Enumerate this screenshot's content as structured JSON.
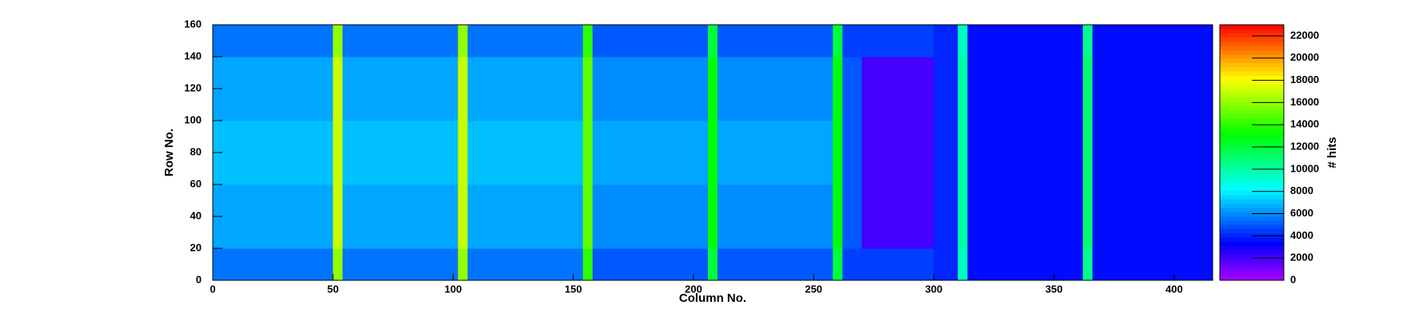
{
  "chart_data": {
    "type": "heatmap",
    "x_label": "Column No.",
    "y_label": "Row No.",
    "z_label": "# hits",
    "xbins": [
      0,
      50,
      54,
      102,
      106,
      154,
      158,
      206,
      210,
      258,
      262,
      270,
      300,
      310,
      314,
      362,
      366,
      416
    ],
    "ybins": [
      0,
      20,
      40,
      60,
      80,
      100,
      120,
      140,
      160
    ],
    "values": [
      [
        5500,
        16000,
        5500,
        16000,
        5500,
        14000,
        5000,
        12000,
        5000,
        12000,
        4500,
        4500,
        4000,
        9500,
        3500,
        10500,
        3500
      ],
      [
        6500,
        17000,
        6500,
        17000,
        6500,
        15000,
        6000,
        13000,
        6000,
        13000,
        5000,
        2000,
        4000,
        10000,
        3500,
        11000,
        3500
      ],
      [
        6500,
        17000,
        6500,
        17000,
        6500,
        15000,
        6000,
        13000,
        6000,
        13000,
        5000,
        2000,
        4000,
        10000,
        3500,
        11000,
        3500
      ],
      [
        7000,
        17000,
        7000,
        17000,
        7000,
        15000,
        6500,
        13000,
        6500,
        13000,
        5000,
        2000,
        4000,
        10000,
        3500,
        11000,
        3500
      ],
      [
        7000,
        17000,
        7000,
        17000,
        7000,
        15000,
        6500,
        13000,
        6500,
        13000,
        5000,
        2000,
        4000,
        10000,
        3500,
        11000,
        3500
      ],
      [
        6500,
        17000,
        6500,
        17000,
        6500,
        15000,
        6000,
        13000,
        6000,
        13000,
        5000,
        2000,
        4000,
        10000,
        3500,
        11000,
        3500
      ],
      [
        6500,
        17000,
        6500,
        17000,
        6500,
        15000,
        6000,
        13000,
        6000,
        13000,
        5000,
        2000,
        4000,
        10000,
        3500,
        11000,
        3500
      ],
      [
        5500,
        16000,
        5500,
        16000,
        5500,
        14000,
        5000,
        12000,
        5000,
        12000,
        4500,
        4500,
        4000,
        9500,
        3500,
        10500,
        3500
      ]
    ],
    "xlim": [
      0,
      416
    ],
    "xticks": [
      0,
      50,
      100,
      150,
      200,
      250,
      300,
      350,
      400
    ],
    "ylim": [
      0,
      160
    ],
    "yticks": [
      0,
      20,
      40,
      60,
      80,
      100,
      120,
      140,
      160
    ],
    "zlim": [
      0,
      23000
    ],
    "zticks": [
      0,
      2000,
      4000,
      6000,
      8000,
      10000,
      12000,
      14000,
      16000,
      18000,
      20000,
      22000
    ]
  }
}
